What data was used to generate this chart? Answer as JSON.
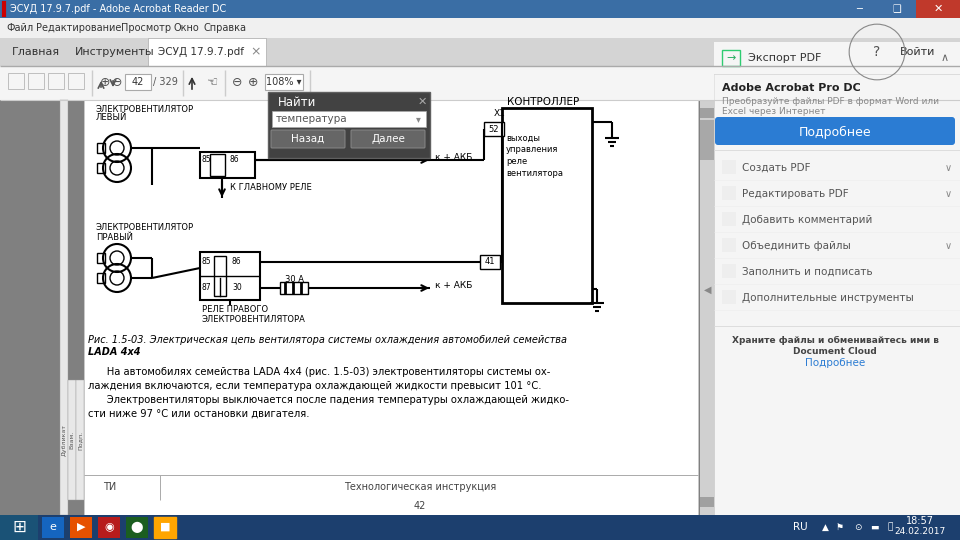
{
  "title_bar": "ЭСУД 17.9.7.pdf - Adobe Acrobat Reader DC",
  "menu_items": [
    "Файл",
    "Редактирование",
    "Просмотр",
    "Окно",
    "Справка"
  ],
  "tab_main": "Главная",
  "tab_instruments": "Инструменты",
  "tab_file": "ЭСУД 17.9.7.pdf",
  "page_num": "42",
  "page_total": "329",
  "zoom_val": "108%",
  "login_text": "Войти",
  "find_title": "Найти",
  "find_placeholder": "температура",
  "find_btn1": "Назад",
  "find_btn2": "Далее",
  "controller_label": "КОНТРОЛЛЕР",
  "fan_left_label1": "ЭЛЕКТРОВЕНТИЛЯТОР",
  "fan_left_label2": "ЛЕВЫЙ",
  "fan_right_label1": "ЭЛЕКТРОВЕНТИЛЯТОР",
  "fan_right_label2": "ПРАВЫЙ",
  "relay_left_label": "К ГЛАВНОМУ РЕЛЕ",
  "relay_right_label1": "РЕЛЕ ПРАВОГО",
  "relay_right_label2": "ЭЛЕКТРОВЕНТИЛЯТОРА",
  "akb_label1": "к + АКБ",
  "akb_label2": "к + АКБ",
  "ampere_label": "30 А",
  "x1_label": "X1",
  "pin52_label": "52",
  "pin41_label": "41",
  "outputs_label1": "выходы",
  "outputs_label2": "управления",
  "outputs_label3": "реле",
  "outputs_label4": "вентилятора",
  "caption_text": "Рис. 1.5-03. Электрическая цепь вентилятора системы охлаждения автомобилей семейства",
  "caption_bold": "LADA 4x4",
  "body_text1": "      На автомобилях семейства LADA 4x4 (рис. 1.5-03) электровентиляторы системы ох-",
  "body_text2": "лаждения включаются, если температура охлаждающей жидкости превысит 101 °С.",
  "body_text3": "      Электровентиляторы выключается после падения температуры охлаждающей жидко-",
  "body_text4": "сти ниже 97 °С или остановки двигателя.",
  "footer_left": "ТИ",
  "footer_center": "Технологическая инструкция",
  "footer_page": "42",
  "right_panel_export": "Экспорт PDF",
  "right_adobe": "Adobe Acrobat Pro DC",
  "right_adobe_sub1": "Преобразуйте файлы PDF в формат Word или",
  "right_adobe_sub2": "Excel через Интернет",
  "right_btn": "Подробнее",
  "right_items": [
    "Создать PDF",
    "Редактировать PDF",
    "Добавить комментарий",
    "Объединить файлы",
    "Заполнить и подписать",
    "Дополнительные инструменты"
  ],
  "right_chevrons": [
    true,
    true,
    false,
    true,
    false,
    false
  ],
  "right_footer1": "Храните файлы и обменивайтесь ими в",
  "right_footer2": "Document Cloud",
  "right_footer3": "Подробнее",
  "taskbar_time": "18:57",
  "taskbar_date": "24.02.2017",
  "taskbar_lang": "RU",
  "title_bg_left": "#3a6ea5",
  "title_bg_right": "#c0392b",
  "menubar_bg": "#f0f0f0",
  "tab_bar_bg": "#e0e0e0",
  "toolbar_bg": "#f0f0f0",
  "content_bg": "#808080",
  "page_bg": "#ffffff",
  "right_panel_bg": "#f5f5f5",
  "taskbar_bg": "#1c3f6e",
  "find_bg": "#404040",
  "find_btn_bg": "#606060",
  "blue_btn_bg": "#2b7cd3",
  "scrollbar_bg": "#d0d0d0"
}
